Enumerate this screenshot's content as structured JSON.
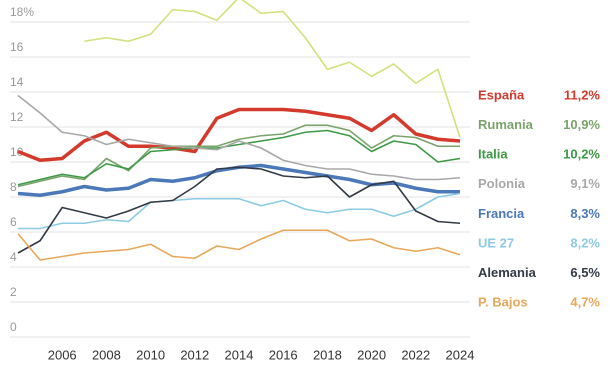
{
  "chart_data": {
    "type": "line",
    "x": [
      2004,
      2005,
      2006,
      2007,
      2008,
      2009,
      2010,
      2011,
      2012,
      2013,
      2014,
      2015,
      2016,
      2017,
      2018,
      2019,
      2020,
      2021,
      2022,
      2023,
      2024
    ],
    "xlim": [
      2004,
      2024
    ],
    "xticks": [
      2006,
      2008,
      2010,
      2012,
      2014,
      2016,
      2018,
      2020,
      2022,
      2024
    ],
    "ylim": [
      0,
      18
    ],
    "yticks": [
      0,
      2,
      4,
      6,
      8,
      10,
      12,
      14,
      16,
      {
        "value": 18,
        "label": "18%"
      }
    ],
    "grid": true,
    "series": [
      {
        "color": "#d4e07a",
        "values": [
          null,
          null,
          null,
          16.9,
          17.1,
          16.9,
          17.3,
          18.7,
          18.6,
          18.1,
          19.4,
          18.5,
          18.6,
          17.1,
          15.3,
          15.7,
          14.9,
          15.6,
          14.5,
          15.3,
          11.4
        ]
      },
      {
        "name": "España",
        "color": "#d33a2c",
        "values": [
          10.6,
          10.1,
          10.2,
          11.2,
          11.7,
          10.9,
          10.9,
          10.8,
          10.6,
          12.5,
          13.0,
          13.0,
          13.0,
          12.9,
          12.7,
          12.5,
          11.8,
          12.7,
          11.6,
          11.3,
          11.2
        ],
        "value_labels": [
          null,
          null,
          null,
          null,
          null,
          null,
          null,
          null,
          null,
          null,
          null,
          null,
          null,
          null,
          null,
          null,
          null,
          null,
          null,
          null,
          "11,2%"
        ]
      },
      {
        "name": "Rumania",
        "color": "#7aa36a",
        "values": [
          8.6,
          8.9,
          9.2,
          9.0,
          10.2,
          9.5,
          10.8,
          10.9,
          10.9,
          10.9,
          11.3,
          11.5,
          11.6,
          12.1,
          12.1,
          11.8,
          10.8,
          11.5,
          11.4,
          10.9,
          10.9
        ],
        "value_labels": [
          null,
          null,
          null,
          null,
          null,
          null,
          null,
          null,
          null,
          null,
          null,
          null,
          null,
          null,
          null,
          null,
          null,
          null,
          null,
          null,
          "10,9%"
        ]
      },
      {
        "name": "Italia",
        "color": "#3c9a45",
        "values": [
          8.7,
          9.0,
          9.3,
          9.1,
          9.9,
          9.6,
          10.6,
          10.7,
          10.8,
          10.8,
          11.0,
          11.2,
          11.4,
          11.7,
          11.8,
          11.5,
          10.6,
          11.2,
          11.0,
          10.0,
          10.2
        ],
        "value_labels": [
          null,
          null,
          null,
          null,
          null,
          null,
          null,
          null,
          null,
          null,
          null,
          null,
          null,
          null,
          null,
          null,
          null,
          null,
          null,
          null,
          "10,2%"
        ]
      },
      {
        "name": "Polonia",
        "color": "#a8a8a8",
        "values": [
          13.8,
          12.8,
          11.7,
          11.5,
          11.0,
          11.3,
          11.1,
          10.9,
          10.8,
          10.7,
          11.2,
          10.8,
          10.1,
          9.8,
          9.6,
          9.6,
          9.3,
          9.2,
          9.0,
          9.0,
          9.1
        ],
        "value_labels": [
          null,
          null,
          null,
          null,
          null,
          null,
          null,
          null,
          null,
          null,
          null,
          null,
          null,
          null,
          null,
          null,
          null,
          null,
          null,
          null,
          "9,1%"
        ]
      },
      {
        "name": "Francia",
        "color": "#4a78b8",
        "values": [
          8.2,
          8.1,
          8.3,
          8.6,
          8.4,
          8.5,
          9.0,
          8.9,
          9.1,
          9.5,
          9.7,
          9.8,
          9.6,
          9.4,
          9.2,
          9.0,
          8.7,
          8.8,
          8.5,
          8.3,
          8.3
        ],
        "value_labels": [
          null,
          null,
          null,
          null,
          null,
          null,
          null,
          null,
          null,
          null,
          null,
          null,
          null,
          null,
          null,
          null,
          null,
          null,
          null,
          null,
          "8,3%"
        ]
      },
      {
        "name": "UE 27",
        "color": "#8ccbe3",
        "values": [
          6.2,
          6.2,
          6.5,
          6.5,
          6.7,
          6.6,
          7.7,
          7.8,
          7.9,
          7.9,
          7.9,
          7.5,
          7.8,
          7.3,
          7.1,
          7.3,
          7.3,
          6.9,
          7.3,
          8.0,
          8.2
        ],
        "value_labels": [
          null,
          null,
          null,
          null,
          null,
          null,
          null,
          null,
          null,
          null,
          null,
          null,
          null,
          null,
          null,
          null,
          null,
          null,
          null,
          null,
          "8,2%"
        ]
      },
      {
        "name": "Alemania",
        "color": "#333a45",
        "values": [
          4.8,
          5.5,
          7.4,
          7.1,
          6.8,
          7.2,
          7.7,
          7.8,
          8.6,
          9.6,
          9.7,
          9.6,
          9.2,
          9.1,
          9.2,
          8.0,
          8.7,
          8.9,
          7.2,
          6.6,
          6.5
        ],
        "value_labels": [
          null,
          null,
          null,
          null,
          null,
          null,
          null,
          null,
          null,
          null,
          null,
          null,
          null,
          null,
          null,
          null,
          null,
          null,
          null,
          null,
          "6,5%"
        ]
      },
      {
        "name": "P. Bajos",
        "color": "#e8a85c",
        "values": [
          5.9,
          4.4,
          4.6,
          4.8,
          4.9,
          5.0,
          5.3,
          4.6,
          4.5,
          5.2,
          5.0,
          5.6,
          6.1,
          6.1,
          6.1,
          5.5,
          5.6,
          5.1,
          4.9,
          5.1,
          4.7
        ],
        "value_labels": [
          null,
          null,
          null,
          null,
          null,
          null,
          null,
          null,
          null,
          null,
          null,
          null,
          null,
          null,
          null,
          null,
          null,
          null,
          null,
          null,
          "4,7%"
        ]
      }
    ]
  }
}
